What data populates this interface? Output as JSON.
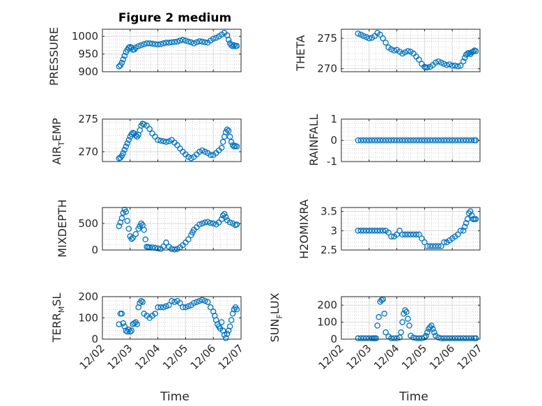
{
  "figure": {
    "xlabel": "Time",
    "x_tick_labels": [
      "12/02",
      "12/03",
      "12/04",
      "12/05",
      "12/06",
      "12/07"
    ],
    "marker_color": "#0072BD"
  },
  "chart_data": [
    {
      "type": "scatter",
      "title": "Figure 2 medium",
      "ylabel": "PRESSURE",
      "ylim": [
        900,
        1020
      ],
      "yticks": [
        900,
        950,
        1000
      ],
      "xlim": [
        "12/02",
        "12/07"
      ],
      "x": [
        0.6,
        0.65,
        0.7,
        0.75,
        0.8,
        0.85,
        0.9,
        0.95,
        1.0,
        1.05,
        1.1,
        1.15,
        1.2,
        1.3,
        1.4,
        1.5,
        1.6,
        1.7,
        1.8,
        1.9,
        2.0,
        2.1,
        2.2,
        2.3,
        2.4,
        2.5,
        2.6,
        2.7,
        2.8,
        2.9,
        3.0,
        3.1,
        3.2,
        3.3,
        3.4,
        3.5,
        3.6,
        3.7,
        3.8,
        3.9,
        4.0,
        4.1,
        4.2,
        4.3,
        4.4,
        4.5,
        4.55,
        4.6,
        4.65,
        4.7,
        4.75,
        4.8,
        4.85
      ],
      "y": [
        915,
        918,
        925,
        935,
        945,
        955,
        962,
        968,
        970,
        968,
        962,
        963,
        968,
        972,
        975,
        978,
        980,
        980,
        979,
        978,
        977,
        978,
        980,
        982,
        982,
        983,
        984,
        985,
        988,
        990,
        988,
        985,
        983,
        980,
        983,
        986,
        985,
        983,
        982,
        988,
        993,
        996,
        1000,
        1005,
        1010,
        1003,
        990,
        980,
        975,
        972,
        975,
        972,
        973
      ]
    },
    {
      "type": "scatter",
      "title": "",
      "ylabel": "THETA",
      "ylim": [
        269.5,
        276.5
      ],
      "yticks": [
        270,
        275
      ],
      "xlim": [
        "12/02",
        "12/07"
      ],
      "x": [
        0.6,
        0.7,
        0.8,
        0.9,
        1.0,
        1.1,
        1.2,
        1.3,
        1.4,
        1.5,
        1.6,
        1.7,
        1.8,
        1.9,
        2.0,
        2.1,
        2.2,
        2.3,
        2.4,
        2.5,
        2.6,
        2.7,
        2.8,
        2.9,
        3.0,
        3.05,
        3.1,
        3.2,
        3.3,
        3.4,
        3.5,
        3.6,
        3.7,
        3.8,
        3.9,
        4.0,
        4.1,
        4.2,
        4.3,
        4.4,
        4.45,
        4.5,
        4.55,
        4.6,
        4.65,
        4.7,
        4.75,
        4.8,
        4.85
      ],
      "y": [
        275.8,
        275.6,
        275.4,
        275.2,
        275.0,
        275.1,
        275.4,
        275.9,
        275.6,
        275.0,
        274.3,
        273.5,
        273.2,
        273.0,
        273.1,
        272.8,
        272.5,
        272.7,
        272.9,
        272.8,
        272.5,
        272.0,
        271.5,
        270.8,
        270.3,
        270.2,
        270.2,
        270.3,
        270.6,
        271.0,
        271.2,
        271.0,
        270.8,
        270.6,
        270.7,
        270.5,
        270.5,
        270.4,
        270.5,
        271.2,
        271.8,
        272.3,
        272.5,
        272.6,
        272.4,
        272.7,
        272.8,
        273.0,
        272.9
      ]
    },
    {
      "type": "scatter",
      "title": "",
      "ylabel": "AIR_TEMP",
      "ylim": [
        268.5,
        275
      ],
      "yticks": [
        270,
        275
      ],
      "xlim": [
        "12/02",
        "12/07"
      ],
      "x": [
        0.6,
        0.65,
        0.7,
        0.75,
        0.8,
        0.85,
        0.9,
        0.95,
        1.0,
        1.05,
        1.1,
        1.15,
        1.2,
        1.25,
        1.3,
        1.35,
        1.4,
        1.45,
        1.5,
        1.6,
        1.7,
        1.8,
        1.9,
        2.0,
        2.1,
        2.2,
        2.3,
        2.4,
        2.5,
        2.6,
        2.7,
        2.8,
        2.9,
        3.0,
        3.1,
        3.2,
        3.3,
        3.4,
        3.5,
        3.6,
        3.7,
        3.8,
        3.9,
        4.0,
        4.1,
        4.2,
        4.3,
        4.35,
        4.4,
        4.45,
        4.5,
        4.55,
        4.6,
        4.65,
        4.7,
        4.75,
        4.8,
        4.85
      ],
      "y": [
        269.0,
        269.1,
        269.4,
        269.8,
        270.3,
        270.8,
        271.3,
        271.8,
        272.3,
        272.7,
        272.9,
        272.8,
        272.5,
        272.3,
        272.6,
        273.3,
        274.0,
        274.3,
        274.2,
        274.0,
        273.5,
        272.8,
        272.3,
        271.8,
        271.7,
        271.6,
        271.5,
        271.6,
        271.8,
        271.4,
        271.0,
        270.5,
        270.0,
        269.6,
        269.2,
        269.0,
        269.2,
        269.6,
        270.0,
        270.2,
        270.0,
        269.8,
        269.5,
        269.5,
        269.8,
        270.2,
        270.6,
        271.5,
        272.3,
        273.0,
        273.4,
        273.2,
        272.3,
        271.5,
        271.0,
        270.8,
        270.9,
        270.8
      ]
    },
    {
      "type": "scatter",
      "title": "",
      "ylabel": "RAINFALL",
      "ylim": [
        -1,
        1
      ],
      "yticks": [
        -1,
        0,
        1
      ],
      "xlim": [
        "12/02",
        "12/07"
      ],
      "x": [
        0.6,
        0.7,
        0.8,
        0.9,
        1.0,
        1.1,
        1.2,
        1.3,
        1.4,
        1.5,
        1.6,
        1.7,
        1.8,
        1.9,
        2.0,
        2.1,
        2.2,
        2.3,
        2.4,
        2.5,
        2.6,
        2.7,
        2.8,
        2.9,
        3.0,
        3.1,
        3.2,
        3.3,
        3.4,
        3.5,
        3.6,
        3.7,
        3.8,
        3.9,
        4.0,
        4.1,
        4.2,
        4.3,
        4.4,
        4.5,
        4.6,
        4.7,
        4.8,
        4.85
      ],
      "y": [
        0,
        0,
        0,
        0,
        0,
        0,
        0,
        0,
        0,
        0,
        0,
        0,
        0,
        0,
        0,
        0,
        0,
        0,
        0,
        0,
        0,
        0,
        0,
        0,
        0,
        0,
        0,
        0,
        0,
        0,
        0,
        0,
        0,
        0,
        0,
        0,
        0,
        0,
        0,
        0,
        0,
        0,
        0,
        0
      ]
    },
    {
      "type": "scatter",
      "title": "",
      "ylabel": "MIXDEPTH",
      "ylim": [
        0,
        800
      ],
      "yticks": [
        0,
        500
      ],
      "xlim": [
        "12/02",
        "12/07"
      ],
      "x": [
        0.6,
        0.65,
        0.7,
        0.75,
        0.8,
        0.85,
        0.9,
        0.95,
        1.0,
        1.05,
        1.1,
        1.2,
        1.3,
        1.35,
        1.4,
        1.45,
        1.5,
        1.55,
        1.6,
        1.65,
        1.7,
        1.8,
        1.9,
        2.0,
        2.1,
        2.2,
        2.3,
        2.4,
        2.5,
        2.6,
        2.7,
        2.8,
        2.9,
        3.0,
        3.1,
        3.2,
        3.25,
        3.3,
        3.4,
        3.5,
        3.6,
        3.7,
        3.8,
        3.9,
        4.0,
        4.1,
        4.2,
        4.3,
        4.35,
        4.4,
        4.45,
        4.5,
        4.6,
        4.7,
        4.8,
        4.85
      ],
      "y": [
        450,
        520,
        600,
        700,
        760,
        720,
        550,
        400,
        260,
        210,
        230,
        300,
        400,
        450,
        500,
        470,
        380,
        200,
        60,
        55,
        50,
        50,
        40,
        30,
        20,
        70,
        140,
        60,
        20,
        10,
        20,
        50,
        90,
        140,
        200,
        280,
        330,
        380,
        430,
        480,
        500,
        520,
        530,
        510,
        500,
        480,
        520,
        580,
        650,
        680,
        620,
        560,
        520,
        500,
        470,
        480
      ]
    },
    {
      "type": "scatter",
      "title": "",
      "ylabel": "H2OMIXRA",
      "ylim": [
        2.5,
        3.6
      ],
      "yticks": [
        2.5,
        3,
        3.5
      ],
      "xlim": [
        "12/02",
        "12/07"
      ],
      "x": [
        0.6,
        0.7,
        0.8,
        0.9,
        1.0,
        1.1,
        1.2,
        1.3,
        1.4,
        1.5,
        1.6,
        1.7,
        1.8,
        1.9,
        2.0,
        2.1,
        2.2,
        2.3,
        2.4,
        2.5,
        2.6,
        2.7,
        2.8,
        2.9,
        3.0,
        3.1,
        3.2,
        3.3,
        3.4,
        3.5,
        3.6,
        3.7,
        3.8,
        3.9,
        4.0,
        4.1,
        4.2,
        4.3,
        4.4,
        4.45,
        4.5,
        4.55,
        4.6,
        4.65,
        4.7,
        4.75,
        4.8,
        4.85
      ],
      "y": [
        3.0,
        3.0,
        3.0,
        3.0,
        3.0,
        3.0,
        3.0,
        3.0,
        3.0,
        3.0,
        3.0,
        2.95,
        2.85,
        2.85,
        2.9,
        3.0,
        2.9,
        2.9,
        2.9,
        2.9,
        2.9,
        2.9,
        2.9,
        2.8,
        2.7,
        2.6,
        2.6,
        2.6,
        2.6,
        2.6,
        2.6,
        2.7,
        2.7,
        2.75,
        2.8,
        2.85,
        2.9,
        3.0,
        3.0,
        3.1,
        3.2,
        3.3,
        3.45,
        3.5,
        3.4,
        3.3,
        3.3,
        3.3
      ]
    },
    {
      "type": "scatter",
      "title": "",
      "ylabel": "TERR_MSL",
      "ylim": [
        0,
        200
      ],
      "yticks": [
        0,
        100,
        200
      ],
      "xlim": [
        "12/02",
        "12/07"
      ],
      "x": [
        0.6,
        0.65,
        0.7,
        0.75,
        0.8,
        0.85,
        0.9,
        0.95,
        1.0,
        1.05,
        1.1,
        1.15,
        1.2,
        1.25,
        1.3,
        1.35,
        1.4,
        1.45,
        1.5,
        1.6,
        1.7,
        1.8,
        1.9,
        2.0,
        2.1,
        2.2,
        2.3,
        2.4,
        2.5,
        2.6,
        2.7,
        2.8,
        2.9,
        3.0,
        3.1,
        3.2,
        3.3,
        3.4,
        3.5,
        3.6,
        3.7,
        3.8,
        3.9,
        4.0,
        4.05,
        4.1,
        4.15,
        4.2,
        4.25,
        4.3,
        4.35,
        4.4,
        4.45,
        4.5,
        4.55,
        4.6,
        4.65,
        4.7,
        4.75,
        4.8,
        4.85
      ],
      "y": [
        70,
        120,
        120,
        75,
        60,
        40,
        35,
        45,
        35,
        40,
        70,
        75,
        80,
        70,
        150,
        170,
        180,
        175,
        120,
        110,
        100,
        110,
        120,
        150,
        150,
        150,
        155,
        160,
        180,
        175,
        180,
        170,
        150,
        150,
        155,
        160,
        170,
        175,
        180,
        185,
        180,
        175,
        150,
        130,
        110,
        90,
        70,
        60,
        50,
        80,
        40,
        20,
        5,
        25,
        40,
        60,
        90,
        120,
        140,
        150,
        140
      ]
    },
    {
      "type": "scatter",
      "title": "",
      "ylabel": "SUN_FLUX",
      "ylim": [
        0,
        250
      ],
      "yticks": [
        0,
        100,
        200
      ],
      "xlim": [
        "12/02",
        "12/07"
      ],
      "x": [
        0.6,
        0.7,
        0.8,
        0.9,
        1.0,
        1.1,
        1.15,
        1.2,
        1.25,
        1.3,
        1.35,
        1.4,
        1.45,
        1.5,
        1.55,
        1.6,
        1.7,
        1.8,
        1.9,
        2.0,
        2.1,
        2.15,
        2.2,
        2.25,
        2.3,
        2.35,
        2.4,
        2.45,
        2.5,
        2.6,
        2.7,
        2.8,
        2.9,
        3.0,
        3.05,
        3.1,
        3.15,
        3.2,
        3.25,
        3.3,
        3.35,
        3.4,
        3.5,
        3.6,
        3.7,
        3.8,
        3.9,
        4.0,
        4.1,
        4.2,
        4.3,
        4.4,
        4.5,
        4.6,
        4.7,
        4.8,
        4.85
      ],
      "y": [
        5,
        5,
        5,
        5,
        5,
        5,
        5,
        5,
        5,
        80,
        130,
        220,
        230,
        235,
        150,
        40,
        15,
        5,
        5,
        5,
        10,
        40,
        100,
        150,
        170,
        160,
        120,
        80,
        20,
        10,
        5,
        5,
        5,
        10,
        20,
        40,
        60,
        70,
        80,
        60,
        40,
        20,
        10,
        5,
        5,
        5,
        5,
        5,
        5,
        5,
        5,
        5,
        5,
        5,
        5,
        5,
        5
      ]
    }
  ]
}
